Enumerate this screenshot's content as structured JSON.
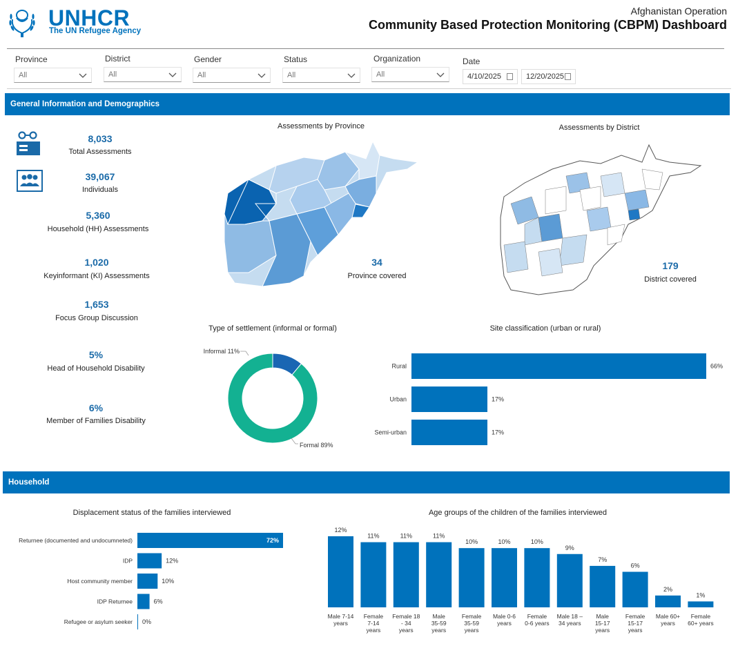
{
  "header": {
    "logo_main": "UNHCR",
    "logo_sub": "The UN Refugee Agency",
    "operation": "Afghanistan Operation",
    "title": "Community Based Protection Monitoring (CBPM) Dashboard"
  },
  "filters": [
    {
      "label": "Province",
      "value": "All"
    },
    {
      "label": "District",
      "value": "All"
    },
    {
      "label": "Gender",
      "value": "All"
    },
    {
      "label": "Status",
      "value": "All"
    },
    {
      "label": "Organization",
      "value": "All"
    }
  ],
  "date_filter": {
    "label": "Date",
    "start": "4/10/2025",
    "end": "12/20/2025"
  },
  "sections": {
    "general": "General Information and Demographics",
    "household": "Household"
  },
  "kpis": [
    {
      "value": "8,033",
      "label": "Total Assessments",
      "icon": "assessment-icon"
    },
    {
      "value": "39,067",
      "label": "Individuals",
      "icon": "people-icon"
    },
    {
      "value": "5,360",
      "label": "Household (HH) Assessments"
    },
    {
      "value": "1,020",
      "label": "Keyinformant (KI) Assessments"
    },
    {
      "value": "1,653",
      "label": "Focus Group Discussion"
    },
    {
      "value": "5%",
      "label": "Head of Household Disability"
    },
    {
      "value": "6%",
      "label": "Member of Families Disability"
    }
  ],
  "maps": {
    "province": {
      "title": "Assessments by Province",
      "value": "34",
      "label": "Province covered"
    },
    "district": {
      "title": "Assessments by District",
      "value": "179",
      "label": "District covered"
    }
  },
  "chart_data": [
    {
      "type": "pie",
      "title": "Type of settlement (informal or formal)",
      "categories": [
        "Informal",
        "Formal"
      ],
      "values": [
        11,
        89
      ],
      "labels": [
        "Informal 11%",
        "Formal 89%"
      ],
      "colors": [
        "#1a66b3",
        "#13b192"
      ]
    },
    {
      "type": "bar",
      "orientation": "horizontal",
      "title": "Site classification (urban or rural)",
      "categories": [
        "Rural",
        "Urban",
        "Semi-urban"
      ],
      "values": [
        66,
        17,
        17
      ],
      "labels": [
        "66%",
        "17%",
        "17%"
      ],
      "color": "#0072bc"
    },
    {
      "type": "bar",
      "orientation": "horizontal",
      "title": "Displacement status of the families interviewed",
      "categories": [
        "Returnee (documented and undocumneted)",
        "IDP",
        "Host community member",
        "IDP Returnee",
        "Refugee or asylum seeker"
      ],
      "values": [
        72,
        12,
        10,
        6,
        0
      ],
      "labels": [
        "72%",
        "12%",
        "10%",
        "6%",
        "0%"
      ],
      "color": "#0072bc"
    },
    {
      "type": "bar",
      "title": "Age groups of the children of the families interviewed",
      "categories": [
        "Male 7-14 years",
        "Female 7-14 years",
        "Female 18 - 34 years",
        "Male 35-59 years",
        "Female 35-59 years",
        "Male 0-6 years",
        "Female 0-6 years",
        "Male 18 – 34 years",
        "Male 15-17 years",
        "Female 15-17 years",
        "Male 60+ years",
        "Female 60+ years"
      ],
      "values": [
        12,
        11,
        11,
        11,
        10,
        10,
        10,
        9,
        7,
        6,
        2,
        1
      ],
      "labels": [
        "12%",
        "11%",
        "11%",
        "11%",
        "10%",
        "10%",
        "10%",
        "9%",
        "7%",
        "6%",
        "2%",
        "1%"
      ],
      "color": "#0072bc"
    }
  ]
}
